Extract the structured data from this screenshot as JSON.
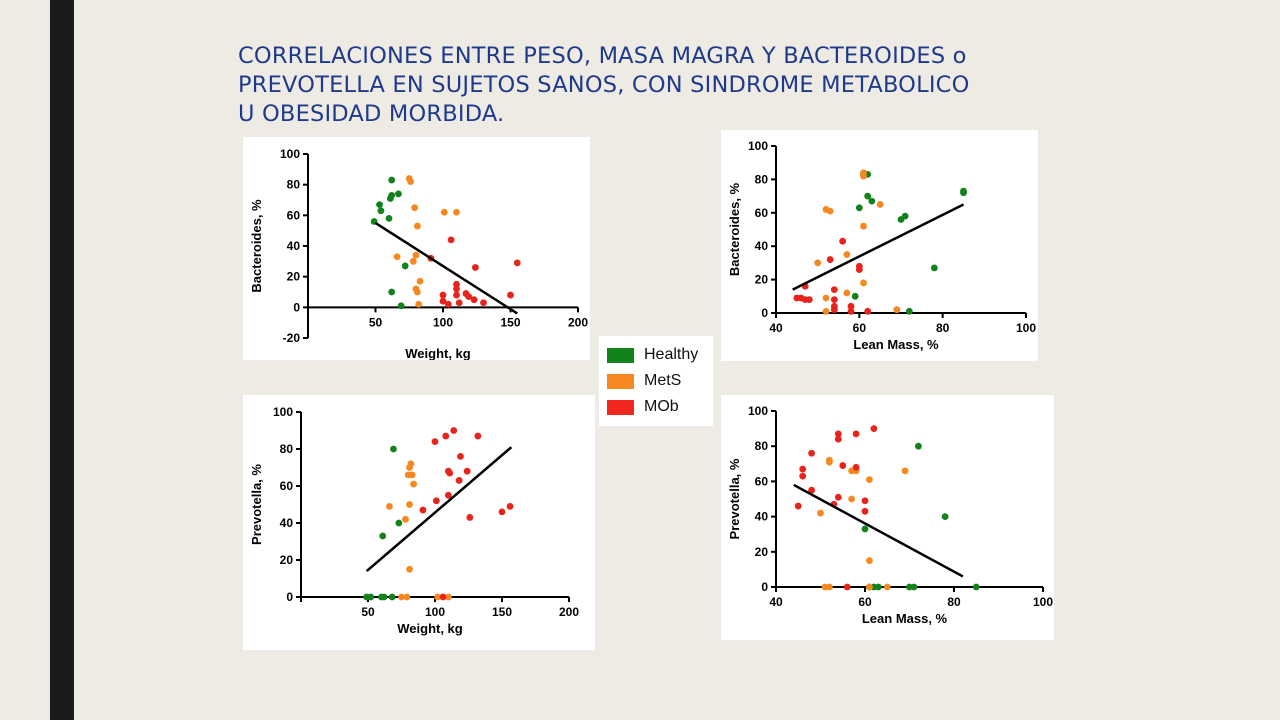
{
  "slide": {
    "title_lines": [
      "CORRELACIONES ENTRE PESO, MASA MAGRA Y BACTEROIDES o",
      "PREVOTELLA  EN  SUJETOS SANOS, CON SINDROME METABOLICO",
      "U OBESIDAD MORBIDA."
    ]
  },
  "legend": {
    "items": [
      {
        "label": "Healthy",
        "color": "#12821b"
      },
      {
        "label": "MetS",
        "color": "#f5891f"
      },
      {
        "label": "MOb",
        "color": "#f0281e"
      }
    ]
  },
  "colors": {
    "Healthy": "#12821b",
    "MetS": "#f5891f",
    "MOb": "#e8231c"
  },
  "chart_data": [
    {
      "type": "scatter",
      "xlabel": "Weight, kg",
      "ylabel": "Bacteroides, %",
      "xlim": [
        0,
        200
      ],
      "ylim": [
        -20,
        100
      ],
      "xticks": [
        50,
        100,
        150,
        200
      ],
      "yticks": [
        -20,
        0,
        20,
        40,
        60,
        80,
        100
      ],
      "regression": [
        [
          50,
          55
        ],
        [
          155,
          -4
        ]
      ],
      "points": [
        {
          "x": 49,
          "y": 56,
          "g": "Healthy"
        },
        {
          "x": 53,
          "y": 67,
          "g": "Healthy"
        },
        {
          "x": 54,
          "y": 63,
          "g": "Healthy"
        },
        {
          "x": 60,
          "y": 58,
          "g": "Healthy"
        },
        {
          "x": 62,
          "y": 83,
          "g": "Healthy"
        },
        {
          "x": 61,
          "y": 71,
          "g": "Healthy"
        },
        {
          "x": 62,
          "y": 73,
          "g": "Healthy"
        },
        {
          "x": 67,
          "y": 74,
          "g": "Healthy"
        },
        {
          "x": 62,
          "y": 10,
          "g": "Healthy"
        },
        {
          "x": 69,
          "y": 1,
          "g": "Healthy"
        },
        {
          "x": 72,
          "y": 27,
          "g": "Healthy"
        },
        {
          "x": 75,
          "y": 84,
          "g": "MetS"
        },
        {
          "x": 76,
          "y": 82,
          "g": "MetS"
        },
        {
          "x": 79,
          "y": 65,
          "g": "MetS"
        },
        {
          "x": 81,
          "y": 53,
          "g": "MetS"
        },
        {
          "x": 66,
          "y": 33,
          "g": "MetS"
        },
        {
          "x": 78,
          "y": 30,
          "g": "MetS"
        },
        {
          "x": 80,
          "y": 34,
          "g": "MetS"
        },
        {
          "x": 83,
          "y": 17,
          "g": "MetS"
        },
        {
          "x": 80,
          "y": 12,
          "g": "MetS"
        },
        {
          "x": 81,
          "y": 10,
          "g": "MetS"
        },
        {
          "x": 82,
          "y": 2,
          "g": "MetS"
        },
        {
          "x": 101,
          "y": 62,
          "g": "MetS"
        },
        {
          "x": 110,
          "y": 62,
          "g": "MetS"
        },
        {
          "x": 106,
          "y": 44,
          "g": "MOb"
        },
        {
          "x": 91,
          "y": 32,
          "g": "MOb"
        },
        {
          "x": 124,
          "y": 26,
          "g": "MOb"
        },
        {
          "x": 155,
          "y": 29,
          "g": "MOb"
        },
        {
          "x": 100,
          "y": 8,
          "g": "MOb"
        },
        {
          "x": 100,
          "y": 4,
          "g": "MOb"
        },
        {
          "x": 104,
          "y": 2,
          "g": "MOb"
        },
        {
          "x": 110,
          "y": 15,
          "g": "MOb"
        },
        {
          "x": 110,
          "y": 12,
          "g": "MOb"
        },
        {
          "x": 110,
          "y": 8,
          "g": "MOb"
        },
        {
          "x": 112,
          "y": 3,
          "g": "MOb"
        },
        {
          "x": 117,
          "y": 9,
          "g": "MOb"
        },
        {
          "x": 119,
          "y": 7,
          "g": "MOb"
        },
        {
          "x": 123,
          "y": 5,
          "g": "MOb"
        },
        {
          "x": 130,
          "y": 3,
          "g": "MOb"
        },
        {
          "x": 150,
          "y": 8,
          "g": "MOb"
        }
      ]
    },
    {
      "type": "scatter",
      "xlabel": "Lean Mass, %",
      "ylabel": "Bacteroides, %",
      "xlim": [
        40,
        100
      ],
      "ylim": [
        0,
        100
      ],
      "xticks": [
        40,
        60,
        80,
        100
      ],
      "yticks": [
        0,
        20,
        40,
        60,
        80,
        100
      ],
      "regression": [
        [
          44,
          14
        ],
        [
          85,
          65
        ]
      ],
      "points": [
        {
          "x": 61,
          "y": 83,
          "g": "Healthy"
        },
        {
          "x": 62,
          "y": 83,
          "g": "Healthy"
        },
        {
          "x": 62,
          "y": 70,
          "g": "Healthy"
        },
        {
          "x": 63,
          "y": 67,
          "g": "Healthy"
        },
        {
          "x": 60,
          "y": 63,
          "g": "Healthy"
        },
        {
          "x": 70,
          "y": 56,
          "g": "Healthy"
        },
        {
          "x": 71,
          "y": 58,
          "g": "Healthy"
        },
        {
          "x": 85,
          "y": 72,
          "g": "Healthy"
        },
        {
          "x": 85,
          "y": 73,
          "g": "Healthy"
        },
        {
          "x": 78,
          "y": 27,
          "g": "Healthy"
        },
        {
          "x": 59,
          "y": 10,
          "g": "Healthy"
        },
        {
          "x": 72,
          "y": 1,
          "g": "Healthy"
        },
        {
          "x": 61,
          "y": 84,
          "g": "MetS"
        },
        {
          "x": 61,
          "y": 82,
          "g": "MetS"
        },
        {
          "x": 65,
          "y": 65,
          "g": "MetS"
        },
        {
          "x": 52,
          "y": 62,
          "g": "MetS"
        },
        {
          "x": 53,
          "y": 61,
          "g": "MetS"
        },
        {
          "x": 61,
          "y": 52,
          "g": "MetS"
        },
        {
          "x": 57,
          "y": 35,
          "g": "MetS"
        },
        {
          "x": 50,
          "y": 30,
          "g": "MetS"
        },
        {
          "x": 61,
          "y": 18,
          "g": "MetS"
        },
        {
          "x": 57,
          "y": 12,
          "g": "MetS"
        },
        {
          "x": 52,
          "y": 9,
          "g": "MetS"
        },
        {
          "x": 52,
          "y": 1,
          "g": "MetS"
        },
        {
          "x": 69,
          "y": 2,
          "g": "MetS"
        },
        {
          "x": 56,
          "y": 43,
          "g": "MOb"
        },
        {
          "x": 53,
          "y": 32,
          "g": "MOb"
        },
        {
          "x": 60,
          "y": 28,
          "g": "MOb"
        },
        {
          "x": 60,
          "y": 26,
          "g": "MOb"
        },
        {
          "x": 47,
          "y": 16,
          "g": "MOb"
        },
        {
          "x": 54,
          "y": 14,
          "g": "MOb"
        },
        {
          "x": 45,
          "y": 9,
          "g": "MOb"
        },
        {
          "x": 46,
          "y": 9,
          "g": "MOb"
        },
        {
          "x": 47,
          "y": 8,
          "g": "MOb"
        },
        {
          "x": 48,
          "y": 8,
          "g": "MOb"
        },
        {
          "x": 54,
          "y": 8,
          "g": "MOb"
        },
        {
          "x": 54,
          "y": 4,
          "g": "MOb"
        },
        {
          "x": 54,
          "y": 2,
          "g": "MOb"
        },
        {
          "x": 58,
          "y": 4,
          "g": "MOb"
        },
        {
          "x": 58,
          "y": 1,
          "g": "MOb"
        },
        {
          "x": 62,
          "y": 1,
          "g": "MOb"
        }
      ]
    },
    {
      "type": "scatter",
      "xlabel": "Weight, kg",
      "ylabel": "Prevotella, %",
      "xlim": [
        0,
        200
      ],
      "ylim": [
        0,
        100
      ],
      "xticks": [
        50,
        100,
        150,
        200
      ],
      "yticks": [
        0,
        20,
        40,
        60,
        80,
        100
      ],
      "regression": [
        [
          49,
          14
        ],
        [
          157,
          81
        ]
      ],
      "points": [
        {
          "x": 69,
          "y": 80,
          "g": "Healthy"
        },
        {
          "x": 73,
          "y": 40,
          "g": "Healthy"
        },
        {
          "x": 61,
          "y": 33,
          "g": "Healthy"
        },
        {
          "x": 49,
          "y": 0,
          "g": "Healthy"
        },
        {
          "x": 52,
          "y": 0,
          "g": "Healthy"
        },
        {
          "x": 60,
          "y": 0,
          "g": "Healthy"
        },
        {
          "x": 62,
          "y": 0,
          "g": "Healthy"
        },
        {
          "x": 68,
          "y": 0,
          "g": "Healthy"
        },
        {
          "x": 82,
          "y": 72,
          "g": "MetS"
        },
        {
          "x": 81,
          "y": 70,
          "g": "MetS"
        },
        {
          "x": 80,
          "y": 66,
          "g": "MetS"
        },
        {
          "x": 83,
          "y": 66,
          "g": "MetS"
        },
        {
          "x": 84,
          "y": 61,
          "g": "MetS"
        },
        {
          "x": 81,
          "y": 50,
          "g": "MetS"
        },
        {
          "x": 66,
          "y": 49,
          "g": "MetS"
        },
        {
          "x": 78,
          "y": 42,
          "g": "MetS"
        },
        {
          "x": 81,
          "y": 15,
          "g": "MetS"
        },
        {
          "x": 75,
          "y": 0,
          "g": "MetS"
        },
        {
          "x": 79,
          "y": 0,
          "g": "MetS"
        },
        {
          "x": 102,
          "y": 0,
          "g": "MetS"
        },
        {
          "x": 110,
          "y": 0,
          "g": "MetS"
        },
        {
          "x": 114,
          "y": 90,
          "g": "MOb"
        },
        {
          "x": 108,
          "y": 87,
          "g": "MOb"
        },
        {
          "x": 100,
          "y": 84,
          "g": "MOb"
        },
        {
          "x": 132,
          "y": 87,
          "g": "MOb"
        },
        {
          "x": 119,
          "y": 76,
          "g": "MOb"
        },
        {
          "x": 110,
          "y": 68,
          "g": "MOb"
        },
        {
          "x": 111,
          "y": 67,
          "g": "MOb"
        },
        {
          "x": 124,
          "y": 68,
          "g": "MOb"
        },
        {
          "x": 118,
          "y": 63,
          "g": "MOb"
        },
        {
          "x": 110,
          "y": 55,
          "g": "MOb"
        },
        {
          "x": 101,
          "y": 52,
          "g": "MOb"
        },
        {
          "x": 91,
          "y": 47,
          "g": "MOb"
        },
        {
          "x": 126,
          "y": 43,
          "g": "MOb"
        },
        {
          "x": 150,
          "y": 46,
          "g": "MOb"
        },
        {
          "x": 156,
          "y": 49,
          "g": "MOb"
        },
        {
          "x": 106,
          "y": 0,
          "g": "MOb"
        }
      ]
    },
    {
      "type": "scatter",
      "xlabel": "Lean Mass, %",
      "ylabel": "Prevotella, %",
      "xlim": [
        40,
        100
      ],
      "ylim": [
        0,
        100
      ],
      "xticks": [
        40,
        60,
        80,
        100
      ],
      "yticks": [
        0,
        20,
        40,
        60,
        80,
        100
      ],
      "regression": [
        [
          44,
          58
        ],
        [
          82,
          6
        ]
      ],
      "points": [
        {
          "x": 72,
          "y": 80,
          "g": "Healthy"
        },
        {
          "x": 78,
          "y": 40,
          "g": "Healthy"
        },
        {
          "x": 60,
          "y": 33,
          "g": "Healthy"
        },
        {
          "x": 61,
          "y": 0,
          "g": "Healthy"
        },
        {
          "x": 62,
          "y": 0,
          "g": "Healthy"
        },
        {
          "x": 63,
          "y": 0,
          "g": "Healthy"
        },
        {
          "x": 70,
          "y": 0,
          "g": "Healthy"
        },
        {
          "x": 71,
          "y": 0,
          "g": "Healthy"
        },
        {
          "x": 85,
          "y": 0,
          "g": "Healthy"
        },
        {
          "x": 52,
          "y": 72,
          "g": "MetS"
        },
        {
          "x": 52,
          "y": 71,
          "g": "MetS"
        },
        {
          "x": 57,
          "y": 66,
          "g": "MetS"
        },
        {
          "x": 58,
          "y": 66,
          "g": "MetS"
        },
        {
          "x": 69,
          "y": 66,
          "g": "MetS"
        },
        {
          "x": 61,
          "y": 61,
          "g": "MetS"
        },
        {
          "x": 57,
          "y": 50,
          "g": "MetS"
        },
        {
          "x": 50,
          "y": 42,
          "g": "MetS"
        },
        {
          "x": 61,
          "y": 15,
          "g": "MetS"
        },
        {
          "x": 51,
          "y": 0,
          "g": "MetS"
        },
        {
          "x": 52,
          "y": 0,
          "g": "MetS"
        },
        {
          "x": 61,
          "y": 0,
          "g": "MetS"
        },
        {
          "x": 65,
          "y": 0,
          "g": "MetS"
        },
        {
          "x": 62,
          "y": 90,
          "g": "MOb"
        },
        {
          "x": 54,
          "y": 87,
          "g": "MOb"
        },
        {
          "x": 54,
          "y": 84,
          "g": "MOb"
        },
        {
          "x": 58,
          "y": 87,
          "g": "MOb"
        },
        {
          "x": 48,
          "y": 76,
          "g": "MOb"
        },
        {
          "x": 55,
          "y": 69,
          "g": "MOb"
        },
        {
          "x": 58,
          "y": 68,
          "g": "MOb"
        },
        {
          "x": 46,
          "y": 67,
          "g": "MOb"
        },
        {
          "x": 46,
          "y": 63,
          "g": "MOb"
        },
        {
          "x": 48,
          "y": 55,
          "g": "MOb"
        },
        {
          "x": 54,
          "y": 51,
          "g": "MOb"
        },
        {
          "x": 53,
          "y": 47,
          "g": "MOb"
        },
        {
          "x": 60,
          "y": 49,
          "g": "MOb"
        },
        {
          "x": 60,
          "y": 43,
          "g": "MOb"
        },
        {
          "x": 45,
          "y": 46,
          "g": "MOb"
        },
        {
          "x": 56,
          "y": 0,
          "g": "MOb"
        }
      ]
    }
  ]
}
